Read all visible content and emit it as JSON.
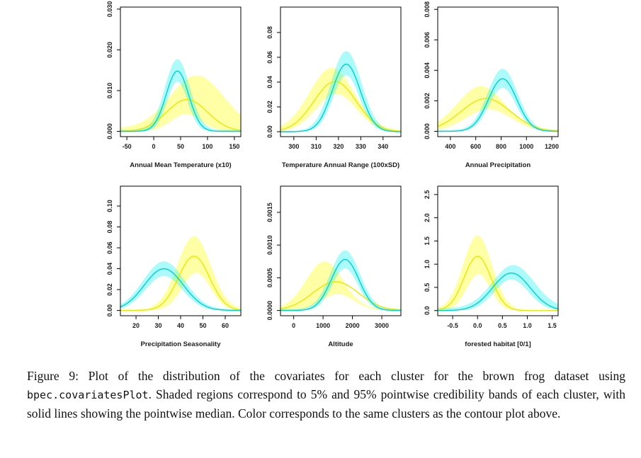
{
  "page": {
    "background": "#ffffff"
  },
  "caption": {
    "part1": "Figure 9:  Plot of the distribution of the covariates for each cluster for the brown frog dataset using ",
    "code": "bpec.covariatesPlot",
    "part2": ". Shaded regions correspond to 5% and 95% pointwise credibility bands of each cluster, with solid lines showing the pointwise median. Color corresponds to the same clusters as the contour plot above."
  },
  "colors": {
    "cyan_line": "#00d0d0",
    "cyan_band": "#00eeee",
    "yellow_line": "#e8e800",
    "yellow_band": "#ffff00",
    "axis": "#000000"
  },
  "curve_model": "each curve is gaussian: y = p*exp(-(x-m)^2/(2*s^2)) + b (p=peak density, m=mean, s=sd, b=baseline); median = pointwise median, upper/lower = 95%/5% credibility band edges",
  "chart_data": [
    {
      "type": "area",
      "xlabel": "Annual Mean Temperature (x10)",
      "xlim": [
        -62,
        162
      ],
      "ylim": [
        -0.0013,
        0.0305
      ],
      "xticks": [
        "-50",
        "0",
        "50",
        "100",
        "150"
      ],
      "yticks": [
        "0.000",
        "0.010",
        "0.020",
        "0.030"
      ],
      "series": [
        {
          "name": "cluster-yellow",
          "line_color": "#e8e800",
          "band_color": "#ffff00",
          "band_opacity": 0.35,
          "median": {
            "m": 62,
            "s": 38,
            "p": 0.0078
          },
          "upper": {
            "m": 80,
            "s": 50,
            "p": 0.013,
            "b": 0.0007
          },
          "lower": {
            "m": 60,
            "s": 28,
            "p": 0.0042
          }
        },
        {
          "name": "cluster-cyan",
          "line_color": "#00d0d0",
          "band_color": "#00eeee",
          "band_opacity": 0.32,
          "median": {
            "m": 44,
            "s": 21,
            "p": 0.0148
          },
          "upper": {
            "m": 44,
            "s": 23,
            "p": 0.0174,
            "b": 0.0003
          },
          "lower": {
            "m": 44,
            "s": 19,
            "p": 0.0122
          }
        }
      ]
    },
    {
      "type": "area",
      "xlabel": "Temperature Annual Range (100xSD)",
      "xlim": [
        294,
        348
      ],
      "ylim": [
        -0.004,
        0.1005
      ],
      "xticks": [
        "300",
        "310",
        "320",
        "330",
        "340"
      ],
      "yticks": [
        "0.00",
        "0.02",
        "0.04",
        "0.06",
        "0.08"
      ],
      "series": [
        {
          "name": "cluster-yellow",
          "line_color": "#e8e800",
          "band_color": "#ffff00",
          "band_opacity": 0.35,
          "median": {
            "m": 318.5,
            "s": 9.5,
            "p": 0.0405
          },
          "upper": {
            "m": 317,
            "s": 10,
            "p": 0.0505,
            "b": 0.001
          },
          "lower": {
            "m": 319,
            "s": 9,
            "p": 0.0305
          }
        },
        {
          "name": "cluster-cyan",
          "line_color": "#00d0d0",
          "band_color": "#00eeee",
          "band_opacity": 0.32,
          "median": {
            "m": 323.5,
            "s": 6.3,
            "p": 0.0545
          },
          "upper": {
            "m": 323.5,
            "s": 6.8,
            "p": 0.0645,
            "b": 0.0005
          },
          "lower": {
            "m": 323.5,
            "s": 5.9,
            "p": 0.0455
          }
        }
      ]
    },
    {
      "type": "area",
      "xlabel": "Annual Precipitation",
      "xlim": [
        300,
        1250
      ],
      "ylim": [
        -0.00035,
        0.00815
      ],
      "xticks": [
        "400",
        "600",
        "800",
        "1000",
        "1200"
      ],
      "yticks": [
        "0.000",
        "0.002",
        "0.004",
        "0.006",
        "0.008"
      ],
      "series": [
        {
          "name": "cluster-yellow",
          "line_color": "#e8e800",
          "band_color": "#ffff00",
          "band_opacity": 0.35,
          "median": {
            "m": 680,
            "s": 195,
            "p": 0.00215
          },
          "upper": {
            "m": 640,
            "s": 185,
            "p": 0.00285,
            "b": 0.0001
          },
          "lower": {
            "m": 700,
            "s": 175,
            "p": 0.00145
          }
        },
        {
          "name": "cluster-cyan",
          "line_color": "#00d0d0",
          "band_color": "#00eeee",
          "band_opacity": 0.32,
          "median": {
            "m": 812,
            "s": 112,
            "p": 0.00345
          },
          "upper": {
            "m": 812,
            "s": 118,
            "p": 0.00405,
            "b": 5e-05
          },
          "lower": {
            "m": 812,
            "s": 106,
            "p": 0.00285
          }
        }
      ]
    },
    {
      "type": "area",
      "xlabel": "Precipitation Seasonality",
      "xlim": [
        13,
        67
      ],
      "ylim": [
        -0.005,
        0.119
      ],
      "xticks": [
        "20",
        "30",
        "40",
        "50",
        "60"
      ],
      "yticks": [
        "0.00",
        "0.02",
        "0.04",
        "0.06",
        "0.08",
        "0.10"
      ],
      "series": [
        {
          "name": "cluster-yellow",
          "line_color": "#e8e800",
          "band_color": "#ffff00",
          "band_opacity": 0.35,
          "median": {
            "m": 46,
            "s": 7,
            "p": 0.052
          },
          "upper": {
            "m": 46,
            "s": 7.5,
            "p": 0.07,
            "b": 0.001
          },
          "lower": {
            "m": 47,
            "s": 6.3,
            "p": 0.036
          }
        },
        {
          "name": "cluster-cyan",
          "line_color": "#00d0d0",
          "band_color": "#00eeee",
          "band_opacity": 0.32,
          "median": {
            "m": 32.5,
            "s": 8.8,
            "p": 0.04
          },
          "upper": {
            "m": 32.5,
            "s": 9.2,
            "p": 0.046,
            "b": 0.001
          },
          "lower": {
            "m": 32.5,
            "s": 8.2,
            "p": 0.033
          }
        }
      ]
    },
    {
      "type": "area",
      "xlabel": "Altitude",
      "xlim": [
        -450,
        3650
      ],
      "ylim": [
        -8e-05,
        0.0019
      ],
      "xticks": [
        "0",
        "1000",
        "2000",
        "3000"
      ],
      "yticks": [
        "0.0000",
        "0.0005",
        "0.0010",
        "0.0015"
      ],
      "series": [
        {
          "name": "cluster-yellow",
          "line_color": "#e8e800",
          "band_color": "#ffff00",
          "band_opacity": 0.35,
          "median": {
            "m": 1430,
            "s": 780,
            "p": 0.00044
          },
          "upper": {
            "m": 1050,
            "s": 620,
            "p": 0.00072,
            "b": 3e-05
          },
          "lower": {
            "m": 1500,
            "s": 550,
            "p": 0.00025
          }
        },
        {
          "name": "cluster-cyan",
          "line_color": "#00d0d0",
          "band_color": "#00eeee",
          "band_opacity": 0.32,
          "median": {
            "m": 1750,
            "s": 470,
            "p": 0.00078
          },
          "upper": {
            "m": 1750,
            "s": 500,
            "p": 0.0009,
            "b": 2e-05
          },
          "lower": {
            "m": 1750,
            "s": 440,
            "p": 0.00064
          }
        }
      ]
    },
    {
      "type": "area",
      "xlabel": "forested habitat [0/1]",
      "xlim": [
        -0.8,
        1.62
      ],
      "ylim": [
        -0.11,
        2.68
      ],
      "xticks": [
        "-0.5",
        "0.0",
        "0.5",
        "1.0",
        "1.5"
      ],
      "yticks": [
        "0.0",
        "0.5",
        "1.0",
        "1.5",
        "2.0",
        "2.5"
      ],
      "series": [
        {
          "name": "cluster-yellow",
          "line_color": "#e8e800",
          "band_color": "#ffff00",
          "band_opacity": 0.35,
          "median": {
            "m": 0.0,
            "s": 0.27,
            "p": 1.17
          },
          "upper": {
            "m": 0.0,
            "s": 0.29,
            "p": 1.6,
            "b": 0.02
          },
          "lower": {
            "m": 0.02,
            "s": 0.24,
            "p": 0.78
          }
        },
        {
          "name": "cluster-cyan",
          "line_color": "#00d0d0",
          "band_color": "#00eeee",
          "band_opacity": 0.32,
          "median": {
            "m": 0.68,
            "s": 0.38,
            "p": 0.81
          },
          "upper": {
            "m": 0.72,
            "s": 0.42,
            "p": 0.93,
            "b": 0.05
          },
          "lower": {
            "m": 0.68,
            "s": 0.34,
            "p": 0.67
          }
        }
      ]
    }
  ]
}
